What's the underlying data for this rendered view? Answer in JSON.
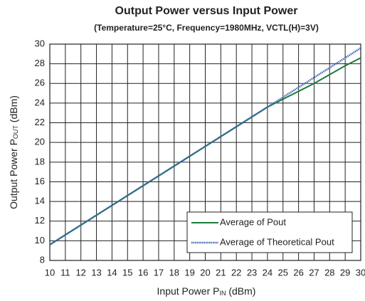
{
  "chart_data": {
    "type": "line",
    "title": "Output Power versus Input Power",
    "subtitle": "(Temperature=25°C, Frequency=1980MHz, VCTL(H)=3V)",
    "x_label": {
      "text": "Input Power P",
      "sub": "IN",
      "suffix": " (dBm)"
    },
    "y_label": {
      "text": "Output Power P",
      "sub": "OUT",
      "suffix": " (dBm)"
    },
    "x": [
      10,
      11,
      12,
      13,
      14,
      15,
      16,
      17,
      18,
      19,
      20,
      21,
      22,
      23,
      24,
      25,
      26,
      27,
      28,
      29,
      30
    ],
    "series": [
      {
        "name": "Average of Pout",
        "color": "#1e7b3c",
        "style": "solid",
        "values": [
          9.6,
          10.6,
          11.6,
          12.6,
          13.6,
          14.6,
          15.6,
          16.6,
          17.6,
          18.6,
          19.6,
          20.6,
          21.6,
          22.6,
          23.6,
          24.4,
          25.2,
          26.0,
          26.9,
          27.8,
          28.6
        ]
      },
      {
        "name": "Average of Theoretical Pout",
        "color": "#3b62b5",
        "style": "dotted",
        "values": [
          9.6,
          10.6,
          11.6,
          12.6,
          13.6,
          14.6,
          15.6,
          16.6,
          17.6,
          18.6,
          19.6,
          20.6,
          21.6,
          22.6,
          23.6,
          24.6,
          25.6,
          26.6,
          27.6,
          28.6,
          29.6
        ]
      }
    ],
    "xlim": [
      10,
      30
    ],
    "xticks": [
      10,
      11,
      12,
      13,
      14,
      15,
      16,
      17,
      18,
      19,
      20,
      21,
      22,
      23,
      24,
      25,
      26,
      27,
      28,
      29,
      30
    ],
    "ylim": [
      8,
      30
    ],
    "yticks": [
      8,
      10,
      12,
      14,
      16,
      18,
      20,
      22,
      24,
      26,
      28,
      30
    ],
    "grid": true,
    "legend": "lower right"
  }
}
